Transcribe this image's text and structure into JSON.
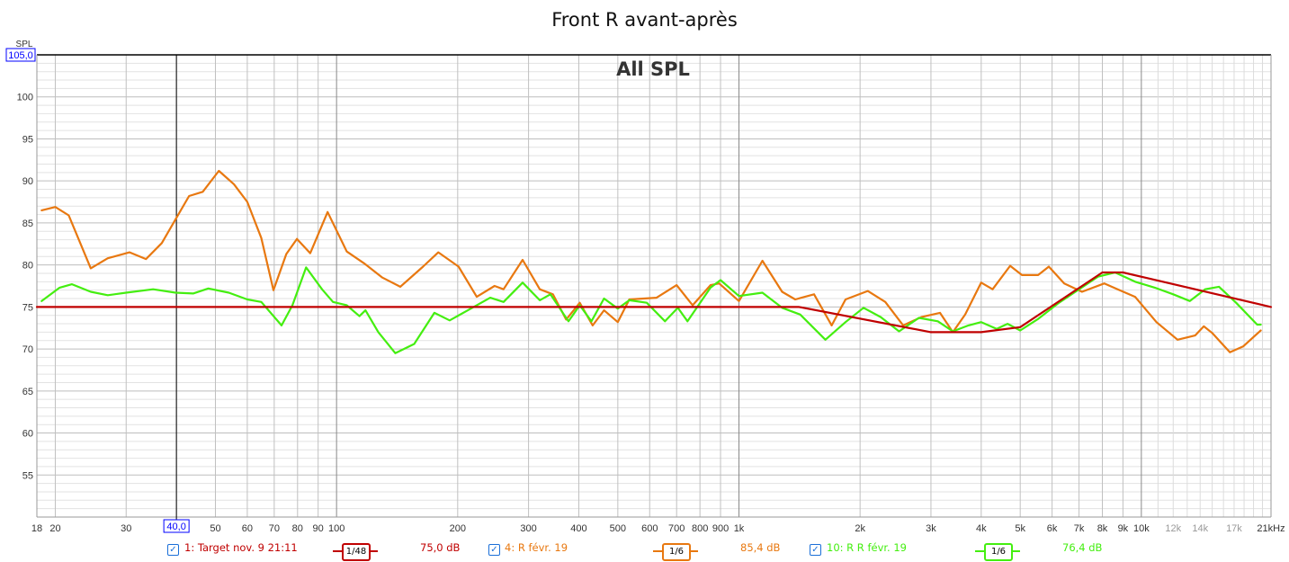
{
  "chart_data": {
    "type": "line",
    "title": "Front R avant-après",
    "overlay_label": "All SPL",
    "ylabel": "SPL",
    "xunit": "kHz",
    "xscale": "log",
    "xlim": [
      18,
      21000
    ],
    "ylim": [
      50,
      105
    ],
    "grid": true,
    "y_ticks": [
      "100",
      "95",
      "90",
      "85",
      "80",
      "75",
      "70",
      "65",
      "60",
      "55"
    ],
    "x_ticks": [
      "18",
      "20",
      "30",
      "40",
      "50",
      "60",
      "70",
      "80",
      "90",
      "100",
      "200",
      "300",
      "400",
      "500",
      "600",
      "700",
      "800",
      "900",
      "1k",
      "2k",
      "3k",
      "4k",
      "5k",
      "6k",
      "7k",
      "8k",
      "9k",
      "10k",
      "12k",
      "14k",
      "17k",
      "21kHz"
    ],
    "x_tick_values": [
      18,
      20,
      30,
      40,
      50,
      60,
      70,
      80,
      90,
      100,
      200,
      300,
      400,
      500,
      600,
      700,
      800,
      900,
      1000,
      2000,
      3000,
      4000,
      5000,
      6000,
      7000,
      8000,
      9000,
      10000,
      12000,
      14000,
      17000,
      21000
    ],
    "cursor": {
      "x": 40,
      "y": 105,
      "x_label": "40,0",
      "y_label": "105,0"
    },
    "series": [
      {
        "name": "1: Target nov. 9 21:11",
        "color": "#c00000",
        "smoothing": "1/48",
        "level": "75,0 dB",
        "points": [
          [
            18,
            75
          ],
          [
            1410,
            75
          ],
          [
            3000,
            72
          ],
          [
            4000,
            72
          ],
          [
            5000,
            72.6
          ],
          [
            8000,
            79.1
          ],
          [
            9000,
            79.1
          ],
          [
            21000,
            75
          ]
        ]
      },
      {
        "name": "4: R févr. 19",
        "color": "#e87810",
        "smoothing": "1/6",
        "level": "85,4 dB",
        "points": [
          [
            18.5,
            86.5
          ],
          [
            20,
            86.9
          ],
          [
            21.6,
            85.9
          ],
          [
            24.5,
            79.6
          ],
          [
            27,
            80.8
          ],
          [
            30.6,
            81.5
          ],
          [
            33.6,
            80.7
          ],
          [
            36.8,
            82.6
          ],
          [
            40,
            85.6
          ],
          [
            43,
            88.2
          ],
          [
            46.5,
            88.7
          ],
          [
            51,
            91.2
          ],
          [
            55.6,
            89.6
          ],
          [
            60,
            87.5
          ],
          [
            65,
            83.2
          ],
          [
            69.7,
            77
          ],
          [
            75,
            81.3
          ],
          [
            79.7,
            83.1
          ],
          [
            86,
            81.4
          ],
          [
            95,
            86.3
          ],
          [
            106,
            81.6
          ],
          [
            117,
            80.2
          ],
          [
            130,
            78.5
          ],
          [
            144,
            77.4
          ],
          [
            164,
            79.8
          ],
          [
            179,
            81.5
          ],
          [
            201,
            79.8
          ],
          [
            223,
            76.2
          ],
          [
            247,
            77.5
          ],
          [
            260,
            77.1
          ],
          [
            290,
            80.6
          ],
          [
            320,
            77.1
          ],
          [
            345,
            76.5
          ],
          [
            372,
            73.5
          ],
          [
            402,
            75.5
          ],
          [
            433,
            72.8
          ],
          [
            462,
            74.6
          ],
          [
            500,
            73.2
          ],
          [
            534,
            75.9
          ],
          [
            624,
            76.1
          ],
          [
            700,
            77.6
          ],
          [
            767,
            75.2
          ],
          [
            850,
            77.6
          ],
          [
            893,
            77.8
          ],
          [
            1000,
            75.7
          ],
          [
            1144,
            80.5
          ],
          [
            1280,
            76.8
          ],
          [
            1380,
            75.9
          ],
          [
            1537,
            76.5
          ],
          [
            1700,
            72.8
          ],
          [
            1840,
            75.9
          ],
          [
            2090,
            76.9
          ],
          [
            2310,
            75.6
          ],
          [
            2560,
            72.8
          ],
          [
            2840,
            73.8
          ],
          [
            3160,
            74.3
          ],
          [
            3400,
            72
          ],
          [
            3650,
            74.1
          ],
          [
            4000,
            77.9
          ],
          [
            4270,
            77.1
          ],
          [
            4720,
            79.9
          ],
          [
            5050,
            78.8
          ],
          [
            5540,
            78.8
          ],
          [
            5890,
            79.8
          ],
          [
            6430,
            77.8
          ],
          [
            7120,
            76.8
          ],
          [
            8090,
            77.8
          ],
          [
            8730,
            77.1
          ],
          [
            9650,
            76.2
          ],
          [
            10900,
            73.2
          ],
          [
            12300,
            71.1
          ],
          [
            13600,
            71.6
          ],
          [
            14300,
            72.7
          ],
          [
            15000,
            71.9
          ],
          [
            16600,
            69.6
          ],
          [
            17900,
            70.3
          ],
          [
            19800,
            72.2
          ]
        ]
      },
      {
        "name": "10: R R févr. 19",
        "color": "#44ee10",
        "smoothing": "1/6",
        "level": "76,4 dB",
        "points": [
          [
            18.5,
            75.7
          ],
          [
            20.5,
            77.3
          ],
          [
            22,
            77.7
          ],
          [
            24.5,
            76.8
          ],
          [
            27,
            76.4
          ],
          [
            30,
            76.7
          ],
          [
            35,
            77.1
          ],
          [
            39.8,
            76.7
          ],
          [
            44,
            76.6
          ],
          [
            48,
            77.2
          ],
          [
            54,
            76.7
          ],
          [
            60,
            75.9
          ],
          [
            65,
            75.6
          ],
          [
            73,
            72.8
          ],
          [
            77.7,
            75.2
          ],
          [
            84,
            79.7
          ],
          [
            92,
            77.1
          ],
          [
            98,
            75.6
          ],
          [
            106,
            75.2
          ],
          [
            114,
            73.9
          ],
          [
            118,
            74.6
          ],
          [
            127,
            72
          ],
          [
            140,
            69.5
          ],
          [
            156,
            70.6
          ],
          [
            175,
            74.3
          ],
          [
            191,
            73.4
          ],
          [
            212,
            74.6
          ],
          [
            241,
            76.1
          ],
          [
            260,
            75.6
          ],
          [
            290,
            77.9
          ],
          [
            320,
            75.8
          ],
          [
            340,
            76.5
          ],
          [
            377,
            73.3
          ],
          [
            402,
            75.2
          ],
          [
            430,
            73.3
          ],
          [
            462,
            76
          ],
          [
            500,
            74.8
          ],
          [
            534,
            75.8
          ],
          [
            590,
            75.5
          ],
          [
            655,
            73.3
          ],
          [
            705,
            74.9
          ],
          [
            745,
            73.3
          ],
          [
            850,
            77.3
          ],
          [
            900,
            78.2
          ],
          [
            1000,
            76.3
          ],
          [
            1144,
            76.7
          ],
          [
            1280,
            74.9
          ],
          [
            1420,
            74.1
          ],
          [
            1640,
            71.1
          ],
          [
            1840,
            73.2
          ],
          [
            2040,
            74.9
          ],
          [
            2250,
            73.8
          ],
          [
            2500,
            72.1
          ],
          [
            2800,
            73.7
          ],
          [
            3120,
            73.3
          ],
          [
            3400,
            72.1
          ],
          [
            3720,
            72.8
          ],
          [
            4000,
            73.2
          ],
          [
            4370,
            72.4
          ],
          [
            4650,
            73
          ],
          [
            5000,
            72.2
          ],
          [
            5550,
            73.6
          ],
          [
            6200,
            75.4
          ],
          [
            6860,
            76.8
          ],
          [
            7800,
            78.6
          ],
          [
            8600,
            79.1
          ],
          [
            9650,
            78
          ],
          [
            10800,
            77.3
          ],
          [
            12000,
            76.5
          ],
          [
            13200,
            75.7
          ],
          [
            14400,
            77.1
          ],
          [
            15600,
            77.4
          ],
          [
            17200,
            75.5
          ],
          [
            19400,
            72.9
          ],
          [
            19800,
            72.9
          ]
        ]
      }
    ]
  }
}
